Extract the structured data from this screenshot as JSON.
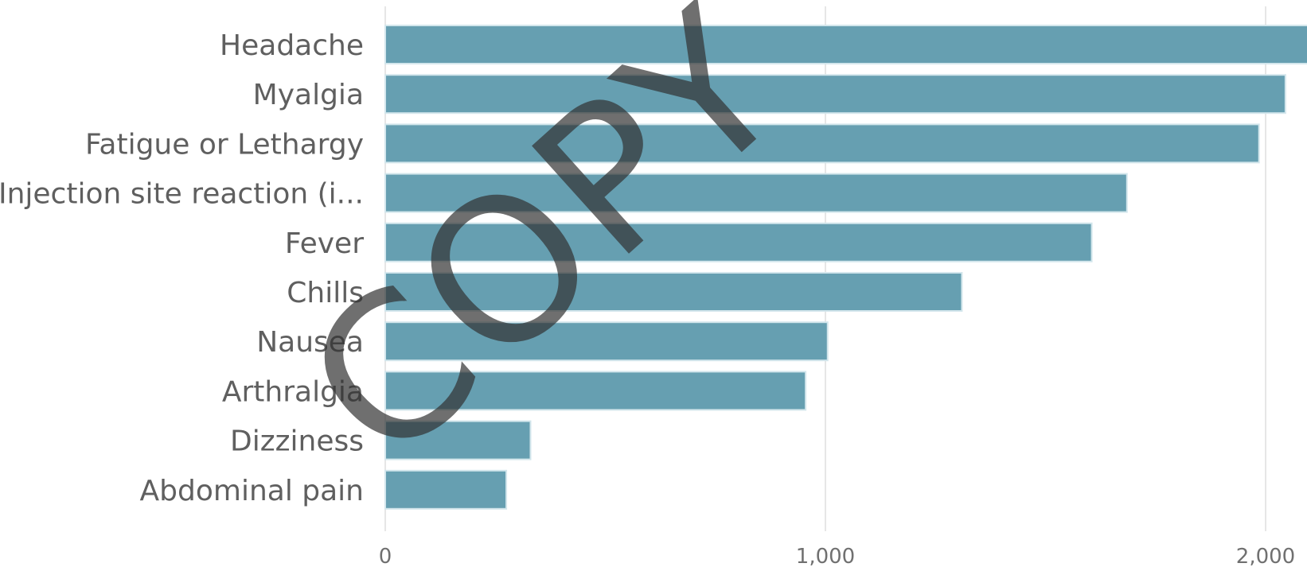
{
  "chart_data": {
    "type": "bar",
    "orientation": "horizontal",
    "categories": [
      "Headache",
      "Myalgia",
      "Fatigue or Lethargy",
      "Injection site reaction (i...",
      "Fever",
      "Chills",
      "Nausea",
      "Arthralgia",
      "Dizziness",
      "Abdominal pain"
    ],
    "values": [
      2100,
      2045,
      1985,
      1685,
      1605,
      1310,
      1005,
      955,
      330,
      275
    ],
    "xlim": [
      0,
      2100
    ],
    "xticks": [
      0,
      1000,
      2000
    ],
    "xtick_labels": [
      "0",
      "1,000",
      "2,000"
    ],
    "grid": "vertical",
    "bar_color": "#669fb1",
    "bar_edge_color": "#d3e6ec"
  },
  "watermark": {
    "text": "COPY"
  }
}
